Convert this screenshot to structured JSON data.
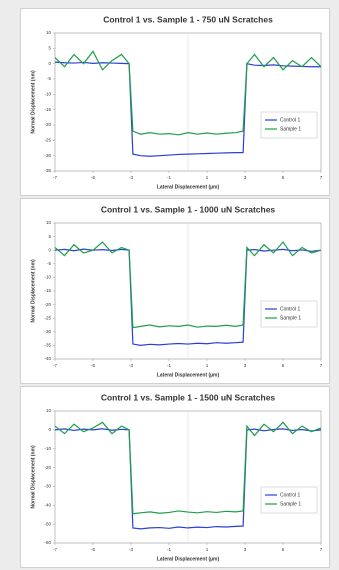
{
  "chart_data": [
    {
      "type": "line",
      "title": "Control 1 vs. Sample 1 - 750 uN Scratches",
      "x_label": "Lateral Displacement (µm)",
      "y_label": "Normal Displacement (nm)",
      "x": [
        -7,
        -6.5,
        -6,
        -5.5,
        -5,
        -4.5,
        -4,
        -3.5,
        -3.1,
        -2.9,
        -2.5,
        -2,
        -1.5,
        -1,
        -0.5,
        0,
        0.5,
        1,
        1.5,
        2,
        2.5,
        2.9,
        3.1,
        3.5,
        4,
        4.5,
        5,
        5.5,
        6,
        6.5,
        7
      ],
      "xlim": [
        -7,
        7
      ],
      "xticks": [
        -7,
        -5,
        -3,
        -1,
        1,
        3,
        5,
        7
      ],
      "ylim": [
        -35,
        10
      ],
      "yticks": [
        10,
        5,
        0,
        -5,
        -10,
        -15,
        -20,
        -25,
        -30,
        -35
      ],
      "legend": "right",
      "series": [
        {
          "name": "Control 1",
          "color": "#2a3fd4",
          "values": [
            0.5,
            0.3,
            0.2,
            0.4,
            0.1,
            0.3,
            0.2,
            0.1,
            0,
            -29.5,
            -30,
            -30.2,
            -30,
            -29.8,
            -29.6,
            -29.5,
            -29.4,
            -29.3,
            -29.2,
            -29.1,
            -29,
            -29,
            0,
            -0.5,
            -0.6,
            -0.4,
            -0.7,
            -0.8,
            -0.9,
            -1,
            -1
          ]
        },
        {
          "name": "Sample 1",
          "color": "#1f9e4a",
          "values": [
            2,
            -1,
            3,
            0,
            4,
            -2,
            1,
            3,
            0,
            -22,
            -23,
            -22.5,
            -23,
            -22.8,
            -23.2,
            -22.5,
            -23,
            -22.6,
            -23,
            -22.7,
            -22.5,
            -22,
            0,
            3,
            -1,
            2,
            -2,
            1,
            -1,
            2,
            -1
          ]
        }
      ]
    },
    {
      "type": "line",
      "title": "Control 1 vs. Sample 1 - 1000 uN Scratches",
      "x_label": "Lateral Displacement (µm)",
      "y_label": "Normal Displacement (nm)",
      "x": [
        -7,
        -6.5,
        -6,
        -5.5,
        -5,
        -4.5,
        -4,
        -3.5,
        -3.1,
        -2.9,
        -2.5,
        -2,
        -1.5,
        -1,
        -0.5,
        0,
        0.5,
        1,
        1.5,
        2,
        2.5,
        2.9,
        3.1,
        3.5,
        4,
        4.5,
        5,
        5.5,
        6,
        6.5,
        7
      ],
      "xlim": [
        -7,
        7
      ],
      "xticks": [
        -7,
        -5,
        -3,
        -1,
        1,
        3,
        5,
        7
      ],
      "ylim": [
        -40,
        10
      ],
      "yticks": [
        10,
        5,
        0,
        -5,
        -10,
        -15,
        -20,
        -25,
        -30,
        -35,
        -40
      ],
      "legend": "right",
      "series": [
        {
          "name": "Control 1",
          "color": "#2a3fd4",
          "values": [
            0,
            0.3,
            -0.2,
            0.4,
            0,
            0.2,
            -0.1,
            0.3,
            0,
            -34.5,
            -35,
            -34.6,
            -34.8,
            -34.5,
            -34.3,
            -34.5,
            -34.2,
            -34.4,
            -34,
            -34.2,
            -34,
            -33.8,
            0,
            0.2,
            -0.3,
            0,
            0.3,
            -0.2,
            0.1,
            -0.4,
            0
          ]
        },
        {
          "name": "Sample 1",
          "color": "#1f9e4a",
          "values": [
            1,
            -2,
            2,
            -1,
            0,
            3,
            -1,
            1,
            0,
            -28.5,
            -28,
            -27.5,
            -28.2,
            -27.8,
            -28,
            -27.5,
            -28.3,
            -27.9,
            -28,
            -27.6,
            -28,
            -27.5,
            1,
            -2,
            2,
            -1,
            3,
            -2,
            1,
            -1,
            0
          ]
        }
      ]
    },
    {
      "type": "line",
      "title": "Control 1 vs. Sample 1 - 1500 uN Scratches",
      "x_label": "Lateral Displacement (µm)",
      "y_label": "Normal Displacement (nm)",
      "x": [
        -7,
        -6.5,
        -6,
        -5.5,
        -5,
        -4.5,
        -4,
        -3.5,
        -3.1,
        -2.9,
        -2.5,
        -2,
        -1.5,
        -1,
        -0.5,
        0,
        0.5,
        1,
        1.5,
        2,
        2.5,
        2.9,
        3.1,
        3.5,
        4,
        4.5,
        5,
        5.5,
        6,
        6.5,
        7
      ],
      "xlim": [
        -7,
        7
      ],
      "xticks": [
        -7,
        -5,
        -3,
        -1,
        1,
        3,
        5,
        7
      ],
      "ylim": [
        -60,
        10
      ],
      "yticks": [
        10,
        0,
        -10,
        -20,
        -30,
        -40,
        -50,
        -60
      ],
      "legend": "right",
      "series": [
        {
          "name": "Control 1",
          "color": "#2a3fd4",
          "values": [
            0,
            0.5,
            -0.3,
            0.4,
            0,
            0.6,
            -0.2,
            0.3,
            0,
            -52,
            -52.5,
            -52,
            -51.8,
            -52.2,
            -51.5,
            -52,
            -51.6,
            -51.8,
            -51.3,
            -51.5,
            -51.2,
            -51,
            0,
            0.4,
            -0.5,
            0.2,
            0.5,
            -0.3,
            0.2,
            -0.6,
            0
          ]
        },
        {
          "name": "Sample 1",
          "color": "#1f9e4a",
          "values": [
            2,
            -2,
            3,
            -1,
            1,
            4,
            -2,
            2,
            0,
            -44.5,
            -44,
            -43.5,
            -44.2,
            -43.8,
            -43,
            -43.6,
            -44,
            -43.4,
            -43.8,
            -43.2,
            -43.5,
            -43,
            2,
            -3,
            3,
            -1,
            4,
            -2,
            2,
            -1,
            1
          ]
        }
      ]
    }
  ]
}
